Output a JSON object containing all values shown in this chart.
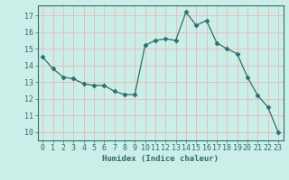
{
  "x": [
    0,
    1,
    2,
    3,
    4,
    5,
    6,
    7,
    8,
    9,
    10,
    11,
    12,
    13,
    14,
    15,
    16,
    17,
    18,
    19,
    20,
    21,
    22,
    23
  ],
  "y": [
    14.5,
    13.8,
    13.3,
    13.2,
    12.9,
    12.8,
    12.8,
    12.45,
    12.25,
    12.25,
    15.2,
    15.5,
    15.6,
    15.5,
    17.2,
    16.4,
    16.7,
    15.35,
    15.0,
    14.7,
    13.3,
    12.2,
    11.5,
    10.0
  ],
  "line_color": "#2d6e6e",
  "marker": "D",
  "marker_size": 2.5,
  "bg_color": "#cceee8",
  "grid_color": "#e8b0b0",
  "xlabel": "Humidex (Indice chaleur)",
  "ylim": [
    9.5,
    17.6
  ],
  "xlim": [
    -0.5,
    23.5
  ],
  "yticks": [
    10,
    11,
    12,
    13,
    14,
    15,
    16,
    17
  ],
  "xticks": [
    0,
    1,
    2,
    3,
    4,
    5,
    6,
    7,
    8,
    9,
    10,
    11,
    12,
    13,
    14,
    15,
    16,
    17,
    18,
    19,
    20,
    21,
    22,
    23
  ],
  "tick_color": "#2d6e6e",
  "label_fontsize": 6.5,
  "tick_fontsize": 6,
  "spine_color": "#2d6e6e"
}
